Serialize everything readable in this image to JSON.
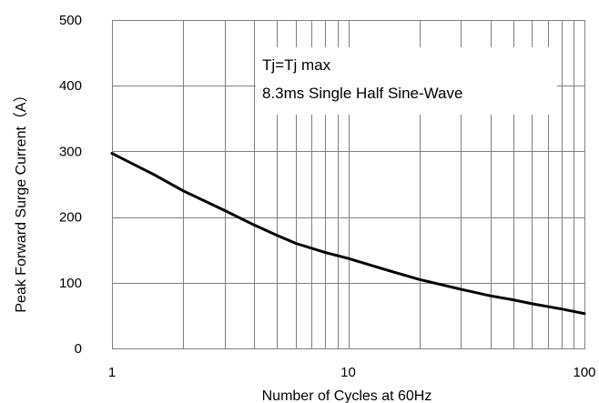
{
  "chart_data": {
    "type": "line",
    "xlabel": "Number of Cycles at 60Hz",
    "ylabel": "Peak Forward Surge Current（A）",
    "x_scale": "log",
    "xlim": [
      1,
      100
    ],
    "ylim": [
      0,
      500
    ],
    "x_ticks": [
      1,
      10,
      100
    ],
    "x_tick_labels": [
      "1",
      "10",
      "100"
    ],
    "y_ticks": [
      0,
      100,
      200,
      300,
      400,
      500
    ],
    "y_tick_labels": [
      "0",
      "100",
      "200",
      "300",
      "400",
      "500"
    ],
    "grid": true,
    "annotations": [
      "Tj=Tj max",
      "8.3ms Single Half Sine-Wave"
    ],
    "series": [
      {
        "x": [
          1,
          1.5,
          2,
          3,
          4,
          5,
          6,
          8,
          10,
          15,
          20,
          30,
          40,
          50,
          60,
          80,
          100
        ],
        "y": [
          297,
          265,
          240,
          210,
          188,
          172,
          160,
          146,
          137,
          118,
          105,
          90,
          80,
          74,
          68,
          60,
          53
        ]
      }
    ],
    "colors": {
      "line": "#000000",
      "grid": "#808080",
      "frame": "#808080"
    }
  }
}
